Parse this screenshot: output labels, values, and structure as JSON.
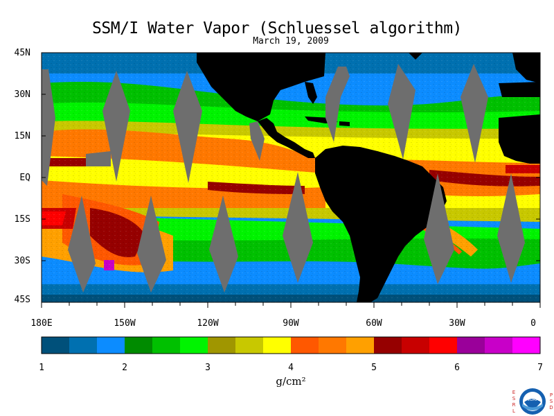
{
  "title": "SSM/I Water Vapor (Schluessel algorithm)",
  "date": "March 19, 2009",
  "map": {
    "lat_labels": [
      "45N",
      "30N",
      "15N",
      "EQ",
      "15S",
      "30S",
      "45S"
    ],
    "lon_labels": [
      "180E",
      "150W",
      "120W",
      "90W",
      "60W",
      "30W",
      "0"
    ]
  },
  "colorbar": {
    "colors": [
      "#00507a",
      "#0070b0",
      "#0c8cff",
      "#008b00",
      "#00c000",
      "#00f400",
      "#a09600",
      "#c8c800",
      "#ffff00",
      "#ff5800",
      "#ff7800",
      "#ffa000",
      "#960000",
      "#c80000",
      "#ff0000",
      "#9a009a",
      "#c800c8",
      "#ff00ff"
    ],
    "tick_labels": [
      "1",
      "2",
      "3",
      "4",
      "5",
      "6",
      "7"
    ],
    "units": "g/cm²"
  },
  "logo": {
    "left_letters": "ESRL",
    "right_letters": "PSD",
    "emblem": "noaa-emblem",
    "text": "NOAA"
  }
}
